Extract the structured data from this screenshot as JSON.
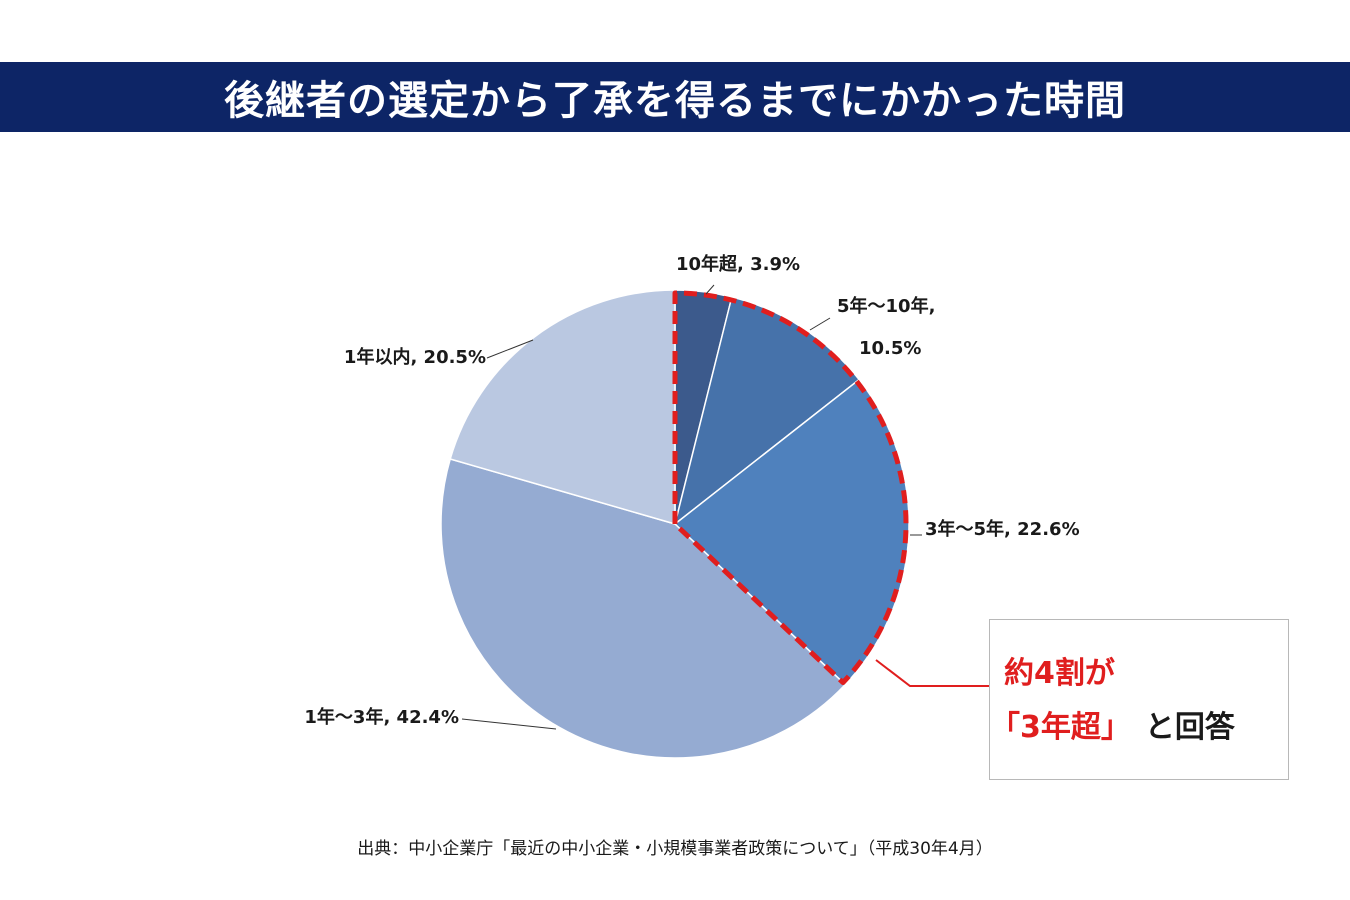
{
  "header": {
    "title": "後継者の選定から了承を得るまでにかかった時間"
  },
  "chart_data": {
    "type": "pie",
    "title": "後継者の選定から了承を得るまでにかかった時間",
    "start_angle": "12 o'clock",
    "direction": "clockwise",
    "slices": [
      {
        "name": "10年超",
        "value": 3.9,
        "label_lines": [
          "10年超, 3.9%"
        ],
        "color": "#3c5a8c"
      },
      {
        "name": "5年～10年",
        "value": 10.5,
        "label_lines": [
          "5年～10年,",
          "10.5%"
        ],
        "color": "#4672aa"
      },
      {
        "name": "3年～5年",
        "value": 22.6,
        "label_lines": [
          "3年～5年, 22.6%"
        ],
        "color": "#4f81bd"
      },
      {
        "name": "1年～3年",
        "value": 42.4,
        "label_lines": [
          "1年～3年, 42.4%"
        ],
        "color": "#95abd2"
      },
      {
        "name": "1年以内",
        "value": 20.5,
        "label_lines": [
          "1年以内, 20.5%"
        ],
        "color": "#bac8e1"
      }
    ],
    "highlight": {
      "slices": [
        "10年超",
        "5年～10年",
        "3年～5年"
      ],
      "style": "dashed outline",
      "color": "#e01e1e"
    }
  },
  "callout": {
    "line1": "約4割が",
    "line2_highlight": "「3年超」",
    "line2_rest": "と回答",
    "accent_color": "#e01e1e"
  },
  "footer": {
    "source": "出典：中小企業庁「最近の中小企業・小規模事業者政策について」（平成30年4月）"
  }
}
